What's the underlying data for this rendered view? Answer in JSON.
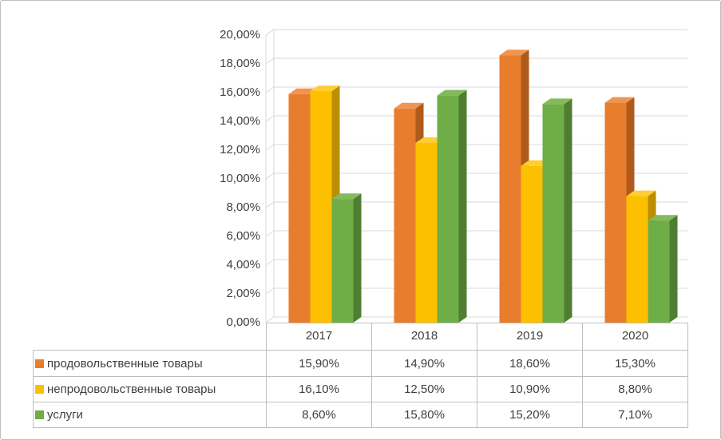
{
  "chart_data": {
    "type": "bar",
    "style": "3d-clustered-column",
    "title": "",
    "categories": [
      "2017",
      "2018",
      "2019",
      "2020"
    ],
    "series": [
      {
        "name": "продовольственные товары",
        "color": "#e87d2e",
        "top_color": "#ef9550",
        "side_color": "#b05a1c",
        "values": [
          15.9,
          14.9,
          18.6,
          15.3
        ],
        "labels": [
          "15,90%",
          "14,90%",
          "18,60%",
          "15,30%"
        ]
      },
      {
        "name": "непродовольственные товары",
        "color": "#fdc000",
        "top_color": "#ffce33",
        "side_color": "#bd8e00",
        "values": [
          16.1,
          12.5,
          10.9,
          8.8
        ],
        "labels": [
          "16,10%",
          "12,50%",
          "10,90%",
          "8,80%"
        ]
      },
      {
        "name": "услуги",
        "color": "#6fad47",
        "top_color": "#83bb5c",
        "side_color": "#4f7e31",
        "values": [
          8.6,
          15.8,
          15.2,
          7.1
        ],
        "labels": [
          "8,60%",
          "15,80%",
          "15,20%",
          "7,10%"
        ]
      }
    ],
    "y_axis": {
      "min": 0,
      "max": 20,
      "step": 2,
      "tick_labels": [
        "0,00%",
        "2,00%",
        "4,00%",
        "6,00%",
        "8,00%",
        "10,00%",
        "12,00%",
        "14,00%",
        "16,00%",
        "18,00%",
        "20,00%"
      ]
    },
    "grid": true,
    "legend_position": "table-left",
    "number_format": "percent-comma-decimal"
  },
  "colors": {
    "grid": "#d9d9d9",
    "table_border": "#bfbfbf",
    "axis_text": "#404040",
    "frame_border": "#bfbfbf"
  }
}
